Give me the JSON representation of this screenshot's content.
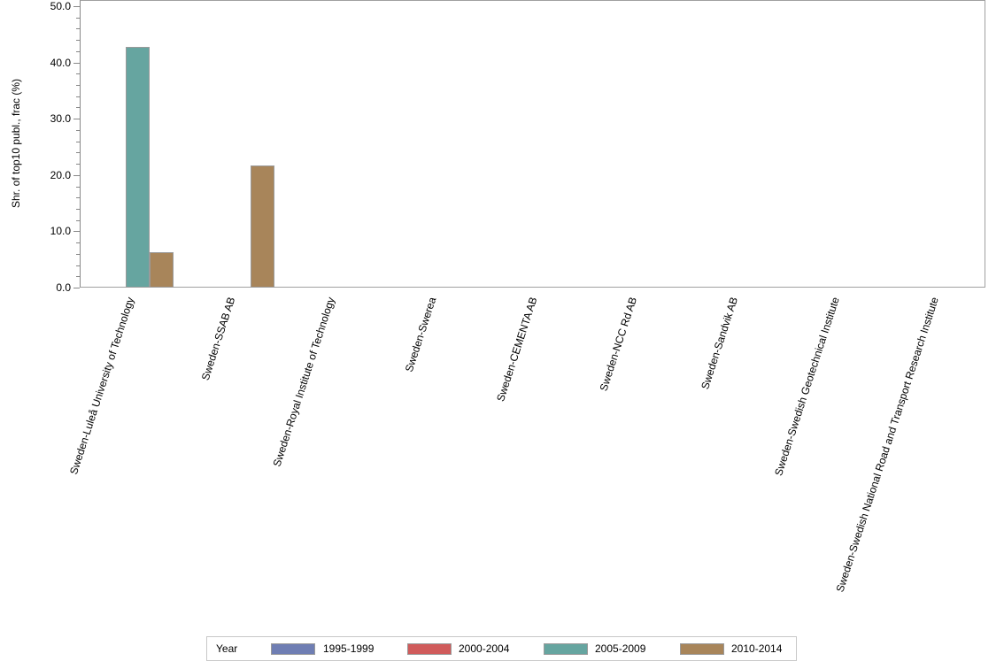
{
  "chart_data": {
    "type": "bar",
    "title": "",
    "xlabel": "",
    "ylabel": "Shr. of top10 publ., frac (%)",
    "ylim": [
      0,
      50
    ],
    "yticks": [
      "0.0",
      "10.0",
      "20.0",
      "30.0",
      "40.0",
      "50.0"
    ],
    "categories": [
      "Sweden-Luleå University of Technology",
      "Sweden-SSAB AB",
      "Sweden-Royal Institute of Technology",
      "Sweden-Swerea",
      "Sweden-CEMENTA AB",
      "Sweden-NCC Rd AB",
      "Sweden-Sandvik AB",
      "Sweden-Swedish Geotechnical Institute",
      "Sweden-Swedish National Road and Transport Research Institute"
    ],
    "series": [
      {
        "name": "1995-1999",
        "color": "#6f7eb3",
        "values": [
          0,
          0,
          0,
          0,
          0,
          0,
          0,
          0,
          0
        ]
      },
      {
        "name": "2000-2004",
        "color": "#d05b5b",
        "values": [
          0,
          0,
          0,
          0,
          0,
          0,
          0,
          0,
          0
        ]
      },
      {
        "name": "2005-2009",
        "color": "#66a5a0",
        "values": [
          42.8,
          0,
          0,
          0,
          0,
          0,
          0,
          0,
          0
        ]
      },
      {
        "name": "2010-2014",
        "color": "#a8855a",
        "values": [
          6.3,
          21.7,
          0,
          0,
          0,
          0,
          0,
          0,
          0
        ]
      }
    ],
    "legend": {
      "title": "Year",
      "position": "bottom"
    },
    "grid": false
  }
}
